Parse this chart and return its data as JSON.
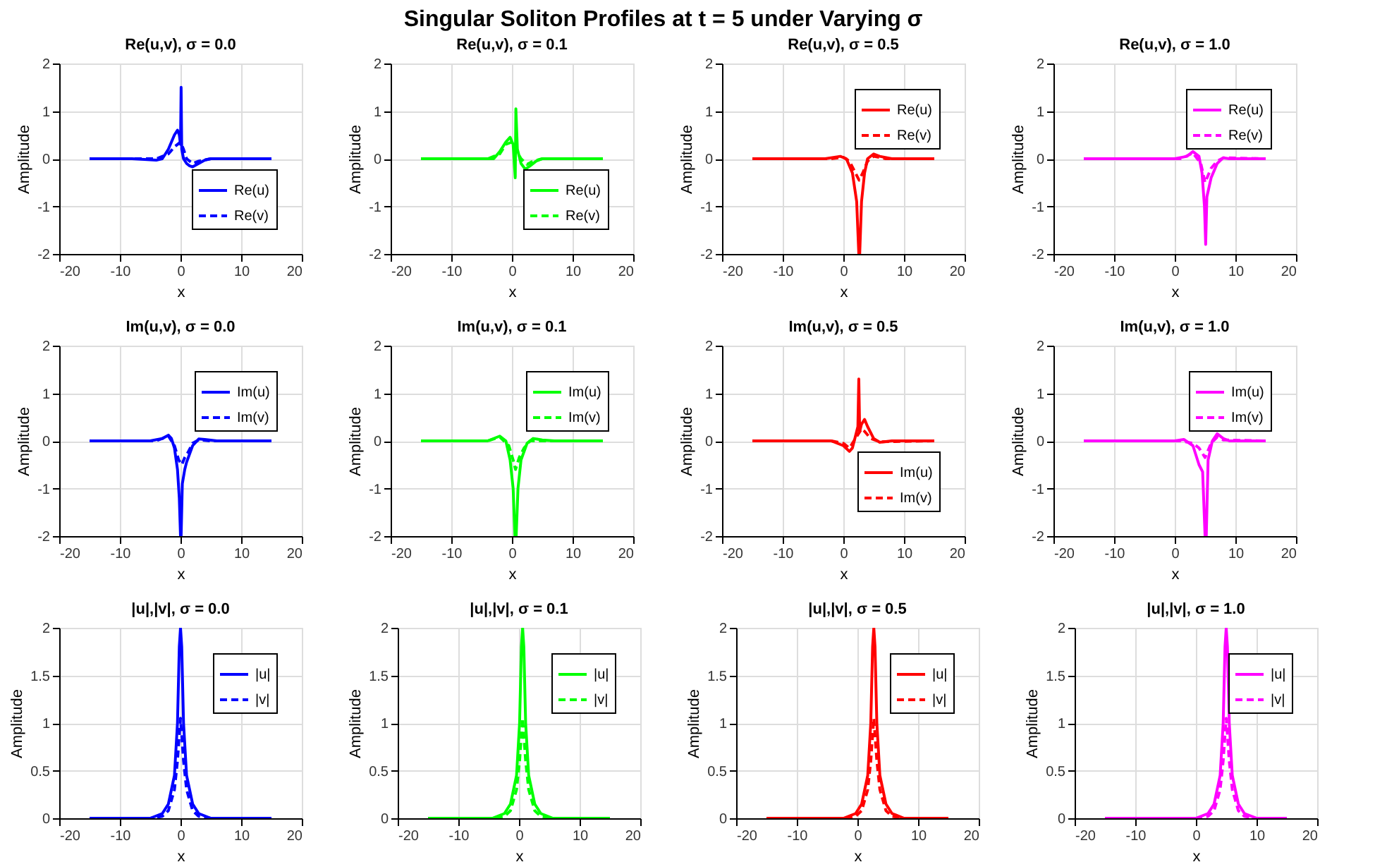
{
  "chart_data": [
    {
      "type": "line",
      "title": "Re(u,v), σ = 0.0",
      "xlabel": "x",
      "ylabel": "Amplitude",
      "annotations": [
        "Singular Soliton Profiles at t = 5 under Varying σ"
      ],
      "xlim": [
        -20,
        20
      ],
      "ylim": [
        -2,
        2
      ],
      "xticks": [
        -20,
        -10,
        0,
        10,
        20
      ],
      "yticks": [
        -2,
        -1,
        0,
        1,
        2
      ],
      "grid": true,
      "legend": "bottom right",
      "series": [
        {
          "name": "Re(u)",
          "color": "#0000ff",
          "line_style": "solid",
          "x": [
            -15,
            -8,
            -4,
            -3,
            -2,
            -1,
            -0.5,
            -0.2,
            0,
            0.1,
            0.2,
            0.5,
            1,
            1.5,
            2,
            3,
            4,
            5,
            8,
            15
          ],
          "values": [
            0,
            0,
            -0.03,
            0,
            0.2,
            0.5,
            0.6,
            0.5,
            0.3,
            1.5,
            0.2,
            0,
            -0.1,
            -0.15,
            -0.17,
            -0.1,
            -0.03,
            0,
            0,
            0
          ]
        },
        {
          "name": "Re(v)",
          "color": "#0000ff",
          "line_style": "dashed",
          "x": [
            -15,
            -4,
            -2,
            -1,
            0,
            0.5,
            1,
            2,
            3,
            5,
            15
          ],
          "values": [
            0,
            0,
            0.1,
            0.25,
            0.35,
            0.2,
            0,
            -0.1,
            -0.05,
            0,
            0
          ]
        }
      ]
    },
    {
      "type": "line",
      "title": "Re(u,v), σ = 0.1",
      "xlabel": "x",
      "ylabel": "Amplitude",
      "xlim": [
        -20,
        20
      ],
      "ylim": [
        -2,
        2
      ],
      "xticks": [
        -20,
        -10,
        0,
        10,
        20
      ],
      "yticks": [
        -2,
        -1,
        0,
        1,
        2
      ],
      "grid": true,
      "legend": "bottom right",
      "series": [
        {
          "name": "Re(u)",
          "color": "#00ff00",
          "line_style": "solid",
          "x": [
            -15,
            -4,
            -3,
            -2,
            -1,
            -0.3,
            0.2,
            0.55,
            0.65,
            0.9,
            1.5,
            2.2,
            3,
            4,
            5,
            15
          ],
          "values": [
            0,
            0,
            0,
            0.15,
            0.35,
            0.45,
            0.3,
            -0.4,
            1.05,
            0.2,
            -0.1,
            -0.22,
            -0.15,
            -0.05,
            0,
            0
          ]
        },
        {
          "name": "Re(v)",
          "color": "#00ff00",
          "line_style": "dashed",
          "x": [
            -15,
            -4,
            -2,
            -1,
            0,
            0.6,
            1.5,
            2.5,
            3.5,
            5,
            15
          ],
          "values": [
            0,
            0,
            0.1,
            0.3,
            0.35,
            0.2,
            0,
            -0.12,
            -0.05,
            0,
            0
          ]
        }
      ]
    },
    {
      "type": "line",
      "title": "Re(u,v), σ = 0.5",
      "xlabel": "x",
      "ylabel": "Amplitude",
      "xlim": [
        -20,
        20
      ],
      "ylim": [
        -2,
        2
      ],
      "xticks": [
        -20,
        -10,
        0,
        10,
        20
      ],
      "yticks": [
        -2,
        -1,
        0,
        1,
        2
      ],
      "grid": true,
      "legend": "top right",
      "series": [
        {
          "name": "Re(u)",
          "color": "#ff0000",
          "line_style": "solid",
          "x": [
            -15,
            -3,
            -0.5,
            0.5,
            1.5,
            2.2,
            2.55,
            2.7,
            3,
            3.5,
            4,
            5,
            6,
            8,
            15
          ],
          "values": [
            0,
            0,
            0.05,
            0,
            -0.3,
            -0.9,
            -2,
            -2,
            -0.9,
            -0.3,
            0,
            0.1,
            0.05,
            0,
            0
          ]
        },
        {
          "name": "Re(v)",
          "color": "#ff0000",
          "line_style": "dashed",
          "x": [
            -15,
            -2,
            0,
            1,
            2,
            2.6,
            3.2,
            4,
            5,
            7,
            15
          ],
          "values": [
            0,
            0,
            0.03,
            -0.05,
            -0.3,
            -0.45,
            -0.3,
            -0.05,
            0.05,
            0,
            0
          ]
        }
      ]
    },
    {
      "type": "line",
      "title": "Re(u,v), σ = 1.0",
      "xlabel": "x",
      "ylabel": "Amplitude",
      "xlim": [
        -20,
        20
      ],
      "ylim": [
        -2,
        2
      ],
      "xticks": [
        -20,
        -10,
        0,
        10,
        20
      ],
      "yticks": [
        -2,
        -1,
        0,
        1,
        2
      ],
      "grid": true,
      "legend": "top right",
      "series": [
        {
          "name": "Re(u)",
          "color": "#ff00ff",
          "line_style": "solid",
          "x": [
            -15,
            0,
            2,
            3,
            4,
            4.5,
            4.9,
            5.1,
            5.3,
            6,
            7,
            8,
            9,
            15
          ],
          "values": [
            0,
            0,
            0.05,
            0.15,
            0.05,
            -0.3,
            -1,
            -1.8,
            -0.8,
            -0.4,
            -0.1,
            0.02,
            0,
            0
          ]
        },
        {
          "name": "Re(v)",
          "color": "#ff00ff",
          "line_style": "dashed",
          "x": [
            -15,
            1,
            3,
            4.3,
            5,
            5.5,
            6,
            7,
            8,
            15
          ],
          "values": [
            0,
            0,
            0.12,
            -0.1,
            -0.5,
            -0.35,
            -0.2,
            -0.05,
            0.02,
            0
          ]
        }
      ]
    },
    {
      "type": "line",
      "title": "Im(u,v), σ = 0.0",
      "xlabel": "x",
      "ylabel": "Amplitude",
      "xlim": [
        -20,
        20
      ],
      "ylim": [
        -2,
        2
      ],
      "xticks": [
        -20,
        -10,
        0,
        10,
        20
      ],
      "yticks": [
        -2,
        -1,
        0,
        1,
        2
      ],
      "grid": true,
      "legend": "top right",
      "series": [
        {
          "name": "Im(u)",
          "color": "#0000ff",
          "line_style": "solid",
          "x": [
            -15,
            -5,
            -3,
            -2,
            -1.5,
            -1,
            -0.5,
            -0.2,
            0,
            0.1,
            0.3,
            0.7,
            1,
            2,
            3,
            4,
            6,
            15
          ],
          "values": [
            0,
            0,
            0.05,
            0.12,
            0.05,
            -0.15,
            -0.6,
            -1.2,
            -2,
            -2,
            -0.9,
            -0.6,
            -0.45,
            -0.1,
            0.04,
            0.03,
            0,
            0
          ]
        },
        {
          "name": "Im(v)",
          "color": "#0000ff",
          "line_style": "dashed",
          "x": [
            -15,
            -4,
            -2,
            -1,
            -0.3,
            0.2,
            0.7,
            1.2,
            2,
            3,
            5,
            15
          ],
          "values": [
            0,
            0,
            0.1,
            -0.1,
            -0.4,
            -0.5,
            -0.35,
            -0.25,
            -0.05,
            0.02,
            0,
            0
          ]
        }
      ]
    },
    {
      "type": "line",
      "title": "Im(u,v), σ = 0.1",
      "xlabel": "x",
      "ylabel": "Amplitude",
      "xlim": [
        -20,
        20
      ],
      "ylim": [
        -2,
        2
      ],
      "xticks": [
        -20,
        -10,
        0,
        10,
        20
      ],
      "yticks": [
        -2,
        -1,
        0,
        1,
        2
      ],
      "grid": true,
      "legend": "top right",
      "series": [
        {
          "name": "Im(u)",
          "color": "#00ff00",
          "line_style": "solid",
          "x": [
            -15,
            -4,
            -2,
            -1,
            -0.3,
            0.2,
            0.5,
            0.7,
            1,
            1.5,
            2.5,
            3.5,
            5,
            7,
            15
          ],
          "values": [
            0,
            0,
            0.1,
            0,
            -0.4,
            -1,
            -2,
            -2,
            -1,
            -0.4,
            -0.05,
            0.05,
            0.02,
            0,
            0
          ]
        },
        {
          "name": "Im(v)",
          "color": "#00ff00",
          "line_style": "dashed",
          "x": [
            -15,
            -4,
            -2,
            -0.5,
            0.2,
            0.6,
            1.2,
            2,
            3,
            15
          ],
          "values": [
            0,
            0,
            0.08,
            -0.1,
            -0.4,
            -0.6,
            -0.35,
            -0.15,
            0,
            0
          ]
        }
      ]
    },
    {
      "type": "line",
      "title": "Im(u,v), σ = 0.5",
      "xlabel": "x",
      "ylabel": "Amplitude",
      "xlim": [
        -20,
        20
      ],
      "ylim": [
        -2,
        2
      ],
      "xticks": [
        -20,
        -10,
        0,
        10,
        20
      ],
      "yticks": [
        -2,
        -1,
        0,
        1,
        2
      ],
      "grid": true,
      "legend": "bottom right",
      "series": [
        {
          "name": "Im(u)",
          "color": "#ff0000",
          "line_style": "solid",
          "x": [
            -15,
            -2,
            0,
            1,
            1.5,
            2,
            2.4,
            2.55,
            2.7,
            3,
            3.5,
            4,
            5,
            6,
            8,
            15
          ],
          "values": [
            0,
            0,
            -0.1,
            -0.22,
            -0.15,
            0.1,
            0.3,
            1.3,
            0.2,
            0.35,
            0.45,
            0.3,
            0.05,
            -0.03,
            0,
            0
          ]
        },
        {
          "name": "Im(v)",
          "color": "#ff0000",
          "line_style": "dashed",
          "x": [
            -15,
            -2,
            0,
            1,
            2,
            2.5,
            3,
            3.5,
            4.5,
            6,
            15
          ],
          "values": [
            0,
            0,
            -0.05,
            -0.15,
            0.05,
            0.15,
            0.25,
            0.2,
            0.05,
            -0.02,
            0
          ]
        }
      ]
    },
    {
      "type": "line",
      "title": "Im(u,v), σ = 1.0",
      "xlabel": "x",
      "ylabel": "Amplitude",
      "xlim": [
        -20,
        20
      ],
      "ylim": [
        -2,
        2
      ],
      "xticks": [
        -20,
        -10,
        0,
        10,
        20
      ],
      "yticks": [
        -2,
        -1,
        0,
        1,
        2
      ],
      "grid": true,
      "legend": "top right",
      "series": [
        {
          "name": "Im(u)",
          "color": "#ff00ff",
          "line_style": "solid",
          "x": [
            -15,
            0,
            1.5,
            3,
            4,
            4.6,
            5,
            5.2,
            5.5,
            6.2,
            7,
            8,
            9,
            15
          ],
          "values": [
            0,
            0,
            0.03,
            -0.1,
            -0.5,
            -0.65,
            -2,
            -2,
            -0.4,
            0,
            0.15,
            0.05,
            0,
            0
          ]
        },
        {
          "name": "Im(v)",
          "color": "#ff00ff",
          "line_style": "dashed",
          "x": [
            -15,
            1,
            3,
            4,
            5,
            5.5,
            6,
            7,
            8,
            15
          ],
          "values": [
            0,
            0,
            -0.05,
            -0.15,
            -0.35,
            -0.2,
            -0.05,
            0.08,
            0.02,
            0
          ]
        }
      ]
    },
    {
      "type": "line",
      "title": "|u|,|v|, σ = 0.0",
      "xlabel": "x",
      "ylabel": "Amplitude",
      "xlim": [
        -20,
        20
      ],
      "ylim": [
        0,
        2
      ],
      "xticks": [
        -20,
        -10,
        0,
        10,
        20
      ],
      "yticks": [
        0,
        0.5,
        1,
        1.5,
        2
      ],
      "grid": true,
      "legend": "top right",
      "series": [
        {
          "name": "|u|",
          "color": "#0000ff",
          "line_style": "solid",
          "x": [
            -15,
            -5,
            -3,
            -2,
            -1,
            -0.5,
            -0.2,
            0,
            0.2,
            0.5,
            1,
            2,
            3,
            5,
            15
          ],
          "values": [
            0,
            0,
            0.05,
            0.15,
            0.45,
            1,
            1.8,
            2,
            1.8,
            1,
            0.45,
            0.15,
            0.05,
            0,
            0
          ]
        },
        {
          "name": "|v|",
          "color": "#0000ff",
          "line_style": "dashed",
          "x": [
            -15,
            -5,
            -3,
            -2,
            -1,
            -0.5,
            0,
            0.5,
            1,
            2,
            3,
            5,
            15
          ],
          "values": [
            0,
            0,
            0.02,
            0.08,
            0.3,
            0.6,
            1.05,
            0.6,
            0.3,
            0.08,
            0.02,
            0,
            0
          ]
        }
      ]
    },
    {
      "type": "line",
      "title": "|u|,|v|, σ = 0.1",
      "xlabel": "x",
      "ylabel": "Amplitude",
      "xlim": [
        -20,
        20
      ],
      "ylim": [
        0,
        2
      ],
      "xticks": [
        -20,
        -10,
        0,
        10,
        20
      ],
      "yticks": [
        0,
        0.5,
        1,
        1.5,
        2
      ],
      "grid": true,
      "legend": "top right",
      "series": [
        {
          "name": "|u|",
          "color": "#00ff00",
          "line_style": "solid",
          "x": [
            -15,
            -4.4,
            -2.4,
            -1.4,
            -0.4,
            0.1,
            0.4,
            0.6,
            0.8,
            1.1,
            1.6,
            2.6,
            3.6,
            5.6,
            15
          ],
          "values": [
            0,
            0,
            0.05,
            0.15,
            0.45,
            1,
            1.8,
            2,
            1.8,
            1,
            0.45,
            0.15,
            0.05,
            0,
            0
          ]
        },
        {
          "name": "|v|",
          "color": "#00ff00",
          "line_style": "dashed",
          "x": [
            -15,
            -4.4,
            -2.4,
            -1.4,
            -0.4,
            0.1,
            0.6,
            1.1,
            1.6,
            2.6,
            3.6,
            5.6,
            15
          ],
          "values": [
            0,
            0,
            0.02,
            0.08,
            0.3,
            0.6,
            1.05,
            0.6,
            0.3,
            0.08,
            0.02,
            0,
            0
          ]
        }
      ]
    },
    {
      "type": "line",
      "title": "|u|,|v|, σ = 0.5",
      "xlabel": "x",
      "ylabel": "Amplitude",
      "xlim": [
        -20,
        20
      ],
      "ylim": [
        0,
        2
      ],
      "xticks": [
        -20,
        -10,
        0,
        10,
        20
      ],
      "yticks": [
        0,
        0.5,
        1,
        1.5,
        2
      ],
      "grid": true,
      "legend": "top right",
      "series": [
        {
          "name": "|u|",
          "color": "#ff0000",
          "line_style": "solid",
          "x": [
            -15,
            -2.3,
            -0.3,
            0.7,
            1.7,
            2.2,
            2.5,
            2.7,
            2.9,
            3.2,
            3.7,
            4.7,
            5.7,
            7.7,
            15
          ],
          "values": [
            0,
            0,
            0.05,
            0.15,
            0.45,
            1,
            1.8,
            2,
            1.8,
            1,
            0.45,
            0.15,
            0.05,
            0,
            0
          ]
        },
        {
          "name": "|v|",
          "color": "#ff0000",
          "line_style": "dashed",
          "x": [
            -15,
            -2.3,
            -0.3,
            0.7,
            1.7,
            2.2,
            2.7,
            3.2,
            3.7,
            4.7,
            5.7,
            7.7,
            15
          ],
          "values": [
            0,
            0,
            0.02,
            0.08,
            0.3,
            0.6,
            1.05,
            0.6,
            0.3,
            0.08,
            0.02,
            0,
            0
          ]
        }
      ]
    },
    {
      "type": "line",
      "title": "|u|,|v|, σ = 1.0",
      "xlabel": "x",
      "ylabel": "Amplitude",
      "xlim": [
        -20,
        20
      ],
      "ylim": [
        0,
        2
      ],
      "xticks": [
        -20,
        -10,
        0,
        10,
        20
      ],
      "yticks": [
        0,
        0.5,
        1,
        1.5,
        2
      ],
      "grid": true,
      "legend": "top right",
      "series": [
        {
          "name": "|u|",
          "color": "#ff00ff",
          "line_style": "solid",
          "x": [
            -15,
            0,
            2,
            3,
            4,
            4.5,
            4.8,
            5,
            5.2,
            5.5,
            6,
            7,
            8,
            10,
            15
          ],
          "values": [
            0,
            0,
            0.05,
            0.15,
            0.45,
            1,
            1.8,
            2,
            1.8,
            1,
            0.45,
            0.15,
            0.05,
            0,
            0
          ]
        },
        {
          "name": "|v|",
          "color": "#ff00ff",
          "line_style": "dashed",
          "x": [
            -15,
            0,
            2,
            3,
            4,
            4.5,
            5,
            5.5,
            6,
            7,
            8,
            10,
            15
          ],
          "values": [
            0,
            0,
            0.02,
            0.08,
            0.3,
            0.6,
            1.05,
            0.6,
            0.3,
            0.08,
            0.02,
            0,
            0
          ]
        }
      ]
    }
  ]
}
